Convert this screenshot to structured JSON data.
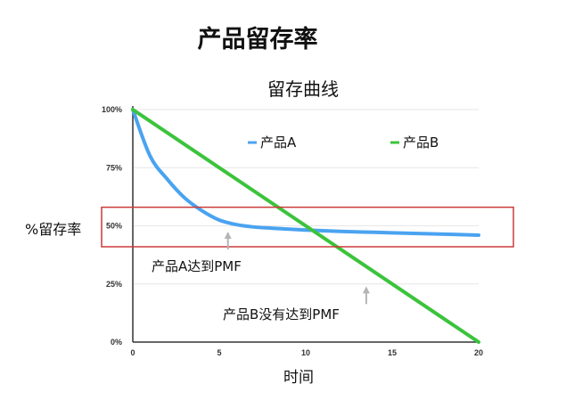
{
  "page_title": "产品留存率",
  "chart_data": {
    "type": "line",
    "title": "留存曲线",
    "xlabel": "时间",
    "ylabel": "%留存率",
    "xlim": [
      0,
      20
    ],
    "ylim": [
      0,
      100
    ],
    "x_ticks": [
      "0",
      "5",
      "10",
      "15",
      "20"
    ],
    "y_ticks": [
      "0%",
      "25%",
      "50%",
      "75%",
      "100%"
    ],
    "grid": true,
    "legend_position": "top-right",
    "series": [
      {
        "name": "产品A",
        "color": "#4aa3f0",
        "x": [
          0,
          1,
          2,
          3,
          4,
          5,
          6,
          7,
          8,
          10,
          12,
          14,
          16,
          18,
          20
        ],
        "y": [
          100,
          80,
          70,
          62,
          56.5,
          52.5,
          50.5,
          49.5,
          49,
          48.2,
          47.6,
          47.2,
          46.8,
          46.4,
          46
        ]
      },
      {
        "name": "产品B",
        "color": "#3cc33c",
        "x": [
          0,
          20
        ],
        "y": [
          100,
          0
        ]
      }
    ],
    "highlight_band": {
      "y_from": 41,
      "y_to": 58,
      "color": "#cc3a3a"
    },
    "annotations": [
      {
        "text": "产品A达到PMF",
        "arrow_x": 5.5,
        "arrow_y": 47.5
      },
      {
        "text": "产品B没有达到PMF",
        "arrow_x": 13.5,
        "arrow_y": 24
      }
    ]
  }
}
